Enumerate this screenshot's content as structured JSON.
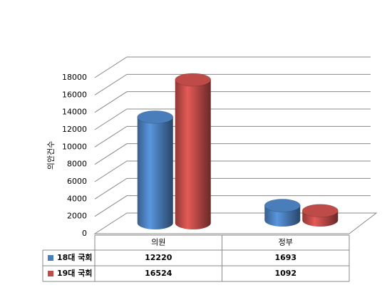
{
  "chart_data": {
    "type": "bar3d",
    "y_label": "의안건수",
    "categories": [
      "의원",
      "정부"
    ],
    "series": [
      {
        "name": "18대 국회",
        "color": "#4a7ebb",
        "values": [
          12220,
          1693
        ]
      },
      {
        "name": "19대 국회",
        "color": "#be4b48",
        "values": [
          16524,
          1092
        ]
      }
    ],
    "ylim": [
      0,
      18000
    ],
    "yticks": [
      0,
      2000,
      4000,
      6000,
      8000,
      10000,
      12000,
      14000,
      16000,
      18000
    ],
    "grid": true
  }
}
